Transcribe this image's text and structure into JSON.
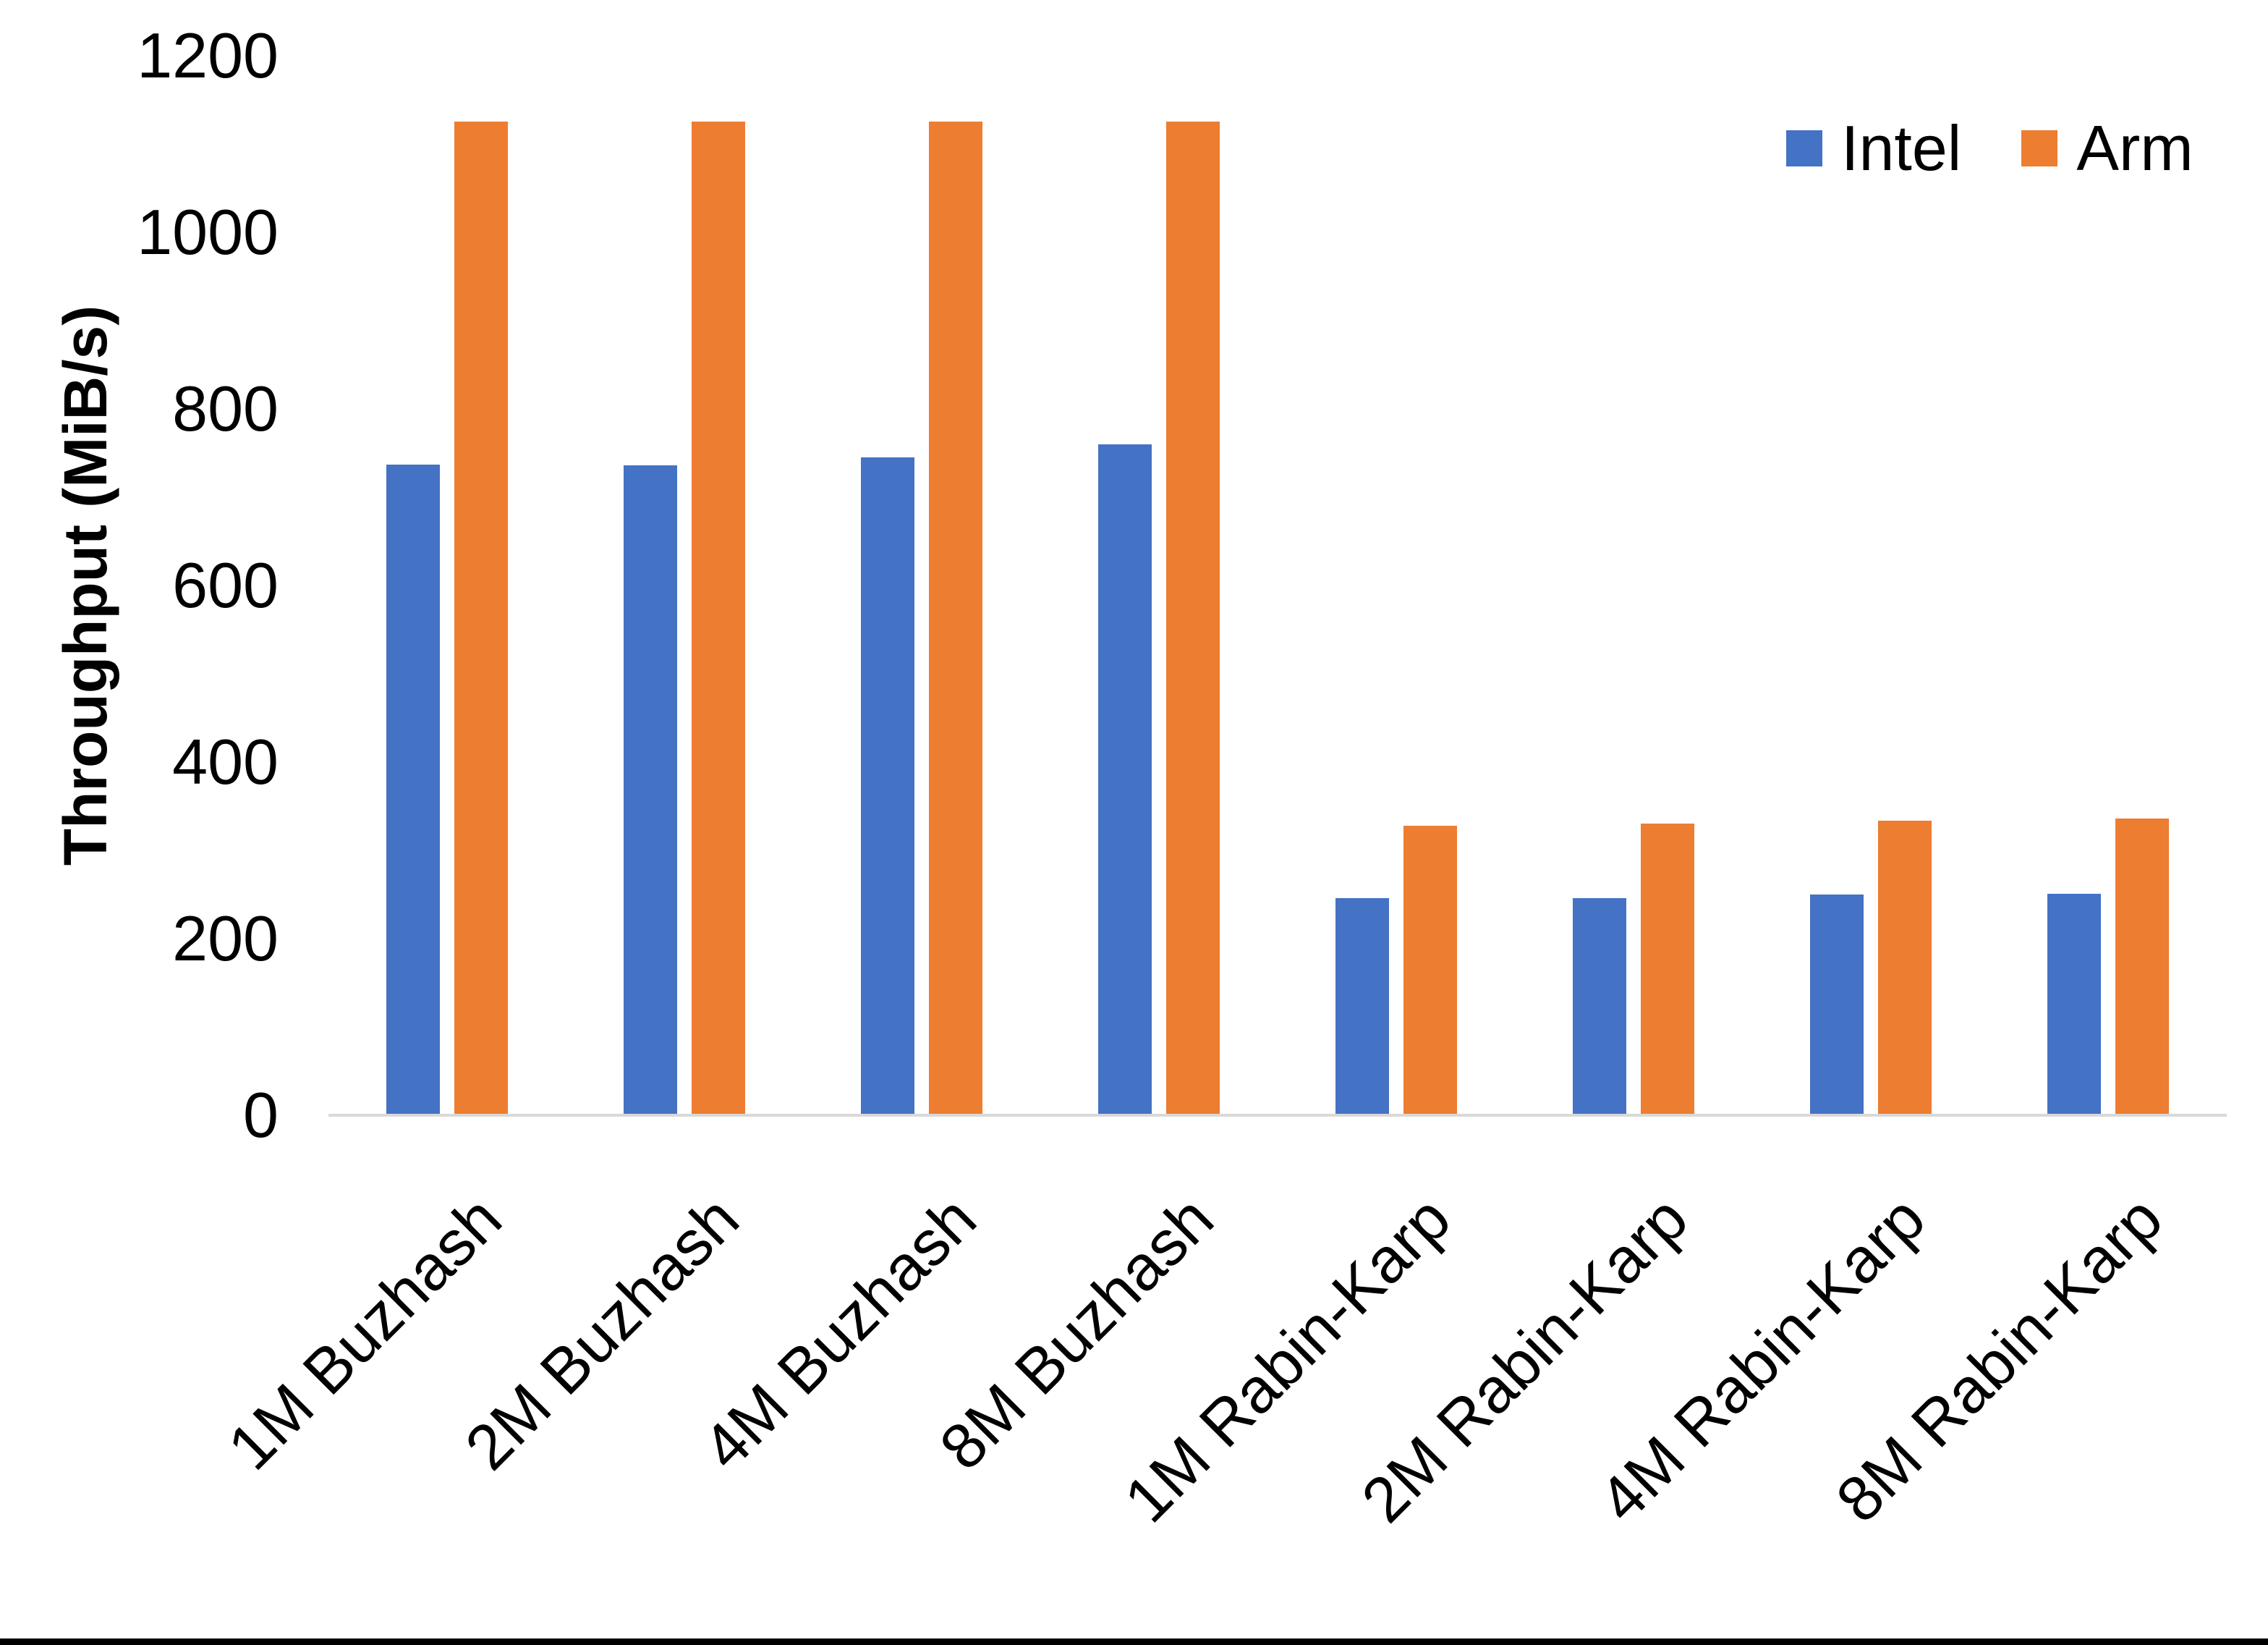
{
  "chart_data": {
    "type": "bar",
    "title": "",
    "categories": [
      "1M Buzhash",
      "2M Buzhash",
      "4M Buzhash",
      "8M Buzhash",
      "1M Rabin-Karp",
      "2M Rabin-Karp",
      "4M Rabin-Karp",
      "8M Rabin-Karp"
    ],
    "series": [
      {
        "name": "Intel",
        "color": "#4472C4",
        "values": [
          737,
          736,
          745,
          760,
          246,
          246,
          250,
          251
        ]
      },
      {
        "name": "Arm",
        "color": "#ED7D31",
        "values": [
          1125,
          1125,
          1125,
          1125,
          328,
          330,
          334,
          336
        ]
      }
    ],
    "xlabel": "",
    "ylabel": "Throughput (MiB/s)",
    "ylim": [
      0,
      1200
    ],
    "ytick_step": 200,
    "ytick_labels": [
      "0",
      "200",
      "400",
      "600",
      "800",
      "1000",
      "1200"
    ],
    "grid": false,
    "legend_position": "top-right",
    "colors": {
      "axis_line": "#D9D9D9",
      "text": "#000000",
      "background": "#FFFFFF",
      "bottom_border": "#000000"
    }
  }
}
